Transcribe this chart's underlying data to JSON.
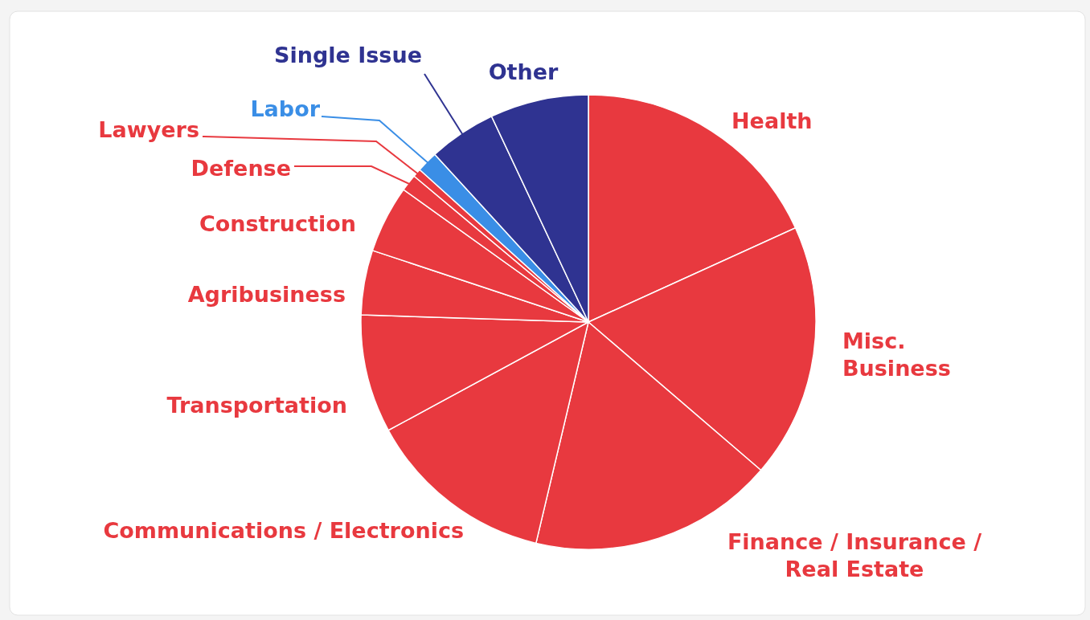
{
  "chart_data": {
    "type": "pie",
    "categories": [
      "Health",
      "Misc. Business",
      "Finance / Insurance / Real Estate",
      "Communications / Electronics",
      "Transportation",
      "Agribusiness",
      "Construction",
      "Defense",
      "Lawyers",
      "Labor",
      "Single Issue",
      "Other"
    ],
    "values": [
      18.2,
      18.1,
      17.4,
      13.4,
      8.4,
      4.6,
      4.8,
      1.2,
      0.6,
      1.5,
      4.8,
      7.0
    ],
    "colors": [
      "#e8393f",
      "#e8393f",
      "#e8393f",
      "#e8393f",
      "#e8393f",
      "#e8393f",
      "#e8393f",
      "#e8393f",
      "#e8393f",
      "#3a8ee6",
      "#2f3391",
      "#2f3391"
    ]
  }
}
